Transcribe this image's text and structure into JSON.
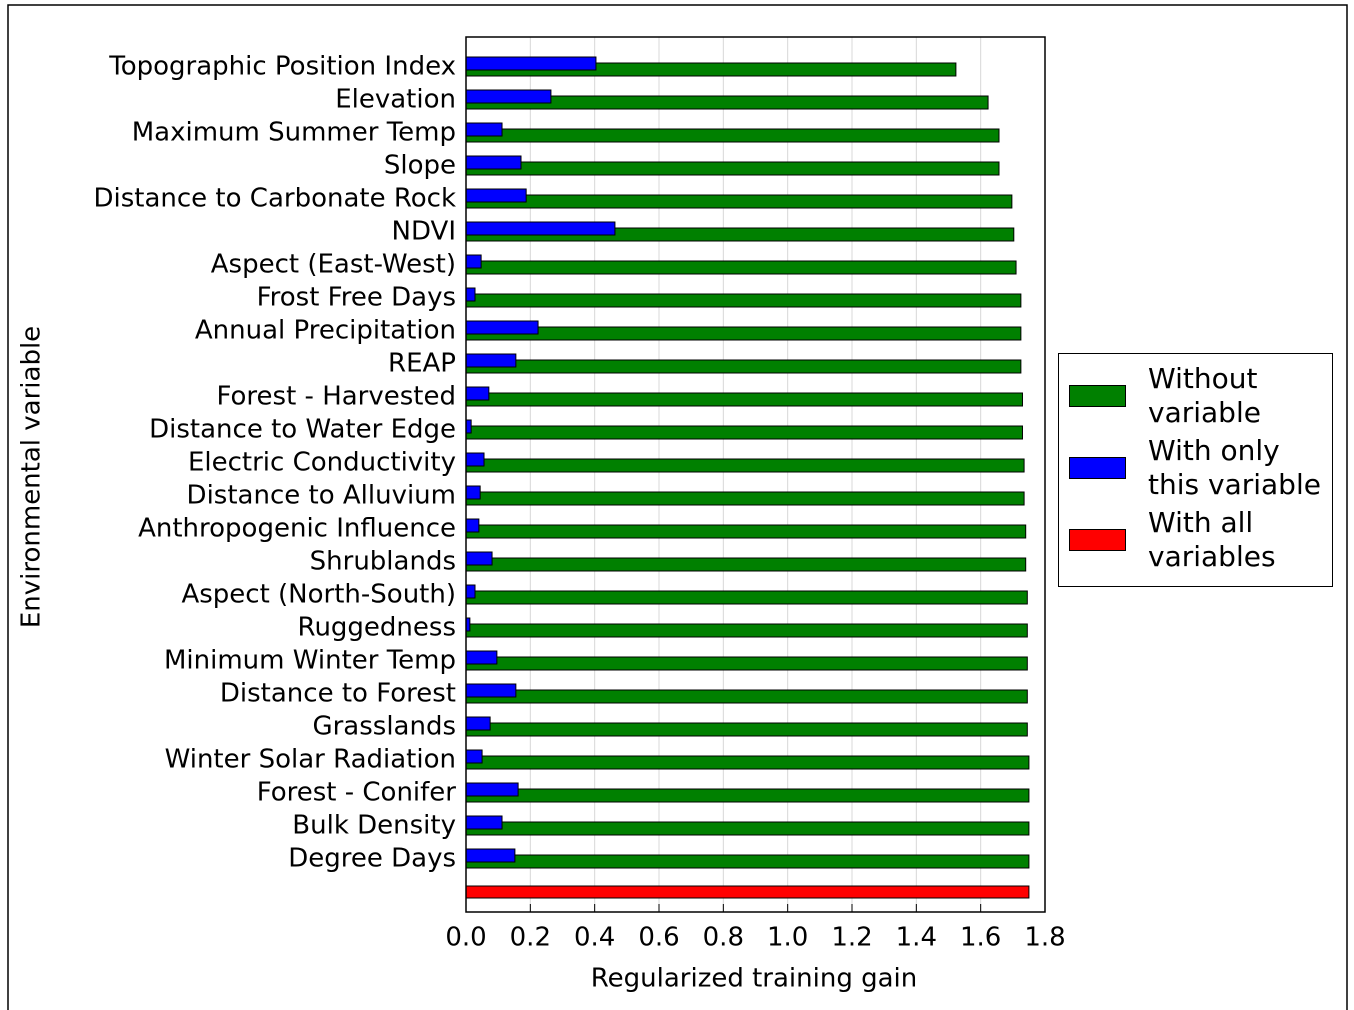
{
  "chart_data": {
    "type": "barh",
    "xlabel": "Regularized training gain",
    "ylabel": "Environmental variable",
    "categories": [
      "Topographic Position Index",
      "Elevation",
      "Maximum Summer Temp",
      "Slope",
      "Distance to Carbonate Rock",
      "NDVI",
      "Aspect (East-West)",
      "Frost Free Days",
      "Annual Precipitation",
      "REAP",
      "Forest - Harvested",
      "Distance to Water Edge",
      "Electric Conductivity",
      "Distance to Alluvium",
      "Anthropogenic Influence",
      "Shrublands",
      "Aspect (North-South)",
      "Ruggedness",
      "Minimum Winter Temp",
      "Distance to Forest",
      "Grasslands",
      "Winter Solar Radiation",
      "Forest - Conifer",
      "Bulk Density",
      "Degree Days",
      null
    ],
    "series": [
      {
        "name": "Without variable",
        "color": "#008000",
        "values": [
          1.523,
          1.623,
          1.657,
          1.657,
          1.697,
          1.703,
          1.71,
          1.725,
          1.725,
          1.725,
          1.73,
          1.73,
          1.735,
          1.735,
          1.74,
          1.74,
          1.745,
          1.745,
          1.745,
          1.745,
          1.745,
          1.75,
          1.75,
          1.75,
          1.75,
          null
        ]
      },
      {
        "name": "With only this variable",
        "color": "#0000ff",
        "values": [
          0.404,
          0.264,
          0.112,
          0.171,
          0.187,
          0.463,
          0.047,
          0.028,
          0.224,
          0.155,
          0.071,
          0.016,
          0.056,
          0.044,
          0.04,
          0.081,
          0.028,
          0.012,
          0.096,
          0.155,
          0.075,
          0.05,
          0.162,
          0.112,
          0.152,
          null
        ]
      },
      {
        "name": "With all variables",
        "color": "#ff0000",
        "values": [
          null,
          null,
          null,
          null,
          null,
          null,
          null,
          null,
          null,
          null,
          null,
          null,
          null,
          null,
          null,
          null,
          null,
          null,
          null,
          null,
          null,
          null,
          null,
          null,
          null,
          1.75
        ]
      }
    ],
    "xlim": [
      0,
      1.8
    ],
    "xticks": [
      {
        "value": 0,
        "label": "0.0"
      },
      0.2,
      0.4,
      0.6,
      0.8,
      {
        "value": 1,
        "label": "1.0"
      },
      1.2,
      1.4,
      1.6,
      1.8
    ],
    "grid": true,
    "legend": "right"
  }
}
